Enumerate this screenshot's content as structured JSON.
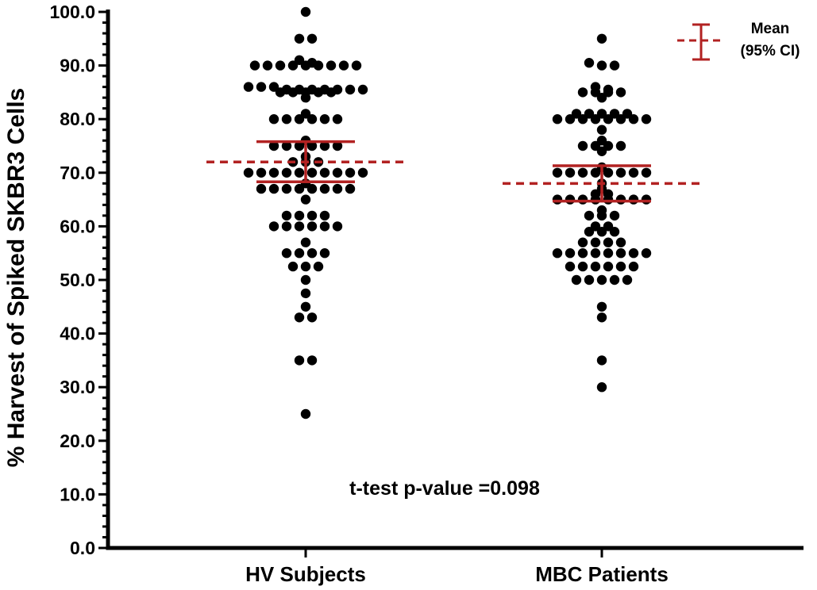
{
  "chart_data": {
    "type": "scatter",
    "subtype": "dot-plot-with-mean-and-ci",
    "title": "",
    "xlabel": "",
    "ylabel": "% Harvest of Spiked SKBR3 Cells",
    "ylim": [
      0,
      100
    ],
    "yticks": [
      0,
      10,
      20,
      30,
      40,
      50,
      60,
      70,
      80,
      90,
      100
    ],
    "ytick_labels": [
      "0.0",
      "10.0",
      "20.0",
      "30.0",
      "40.0",
      "50.0",
      "60.0",
      "70.0",
      "80.0",
      "90.0",
      "100.0"
    ],
    "categories": [
      "HV Subjects",
      "MBC Patients"
    ],
    "series": [
      {
        "name": "HV Subjects",
        "mean": 72.0,
        "ci_low": 68.3,
        "ci_high": 75.8,
        "values": [
          100,
          95,
          95,
          91,
          90.5,
          90,
          90,
          90,
          90,
          90,
          90,
          90,
          90,
          90,
          86,
          86,
          86,
          85.5,
          85.5,
          85.5,
          85.5,
          85.5,
          85.5,
          85.5,
          85,
          85,
          85,
          85,
          85,
          84,
          81,
          80,
          80,
          80,
          80,
          80,
          80,
          76,
          75,
          75,
          75,
          75,
          75,
          75,
          73,
          72,
          72,
          72,
          70,
          70,
          70,
          70,
          70,
          70,
          70,
          70,
          70,
          70,
          68,
          67,
          67,
          67,
          67,
          67,
          67,
          67,
          67,
          65,
          62,
          62,
          62,
          62,
          60,
          60,
          60,
          60,
          60,
          60,
          57,
          55,
          55,
          55,
          55,
          52.5,
          52.5,
          52.5,
          50,
          47.5,
          45,
          43,
          43,
          35,
          35,
          25
        ]
      },
      {
        "name": "MBC Patients",
        "mean": 68.0,
        "ci_low": 64.7,
        "ci_high": 71.3,
        "values": [
          95,
          90.5,
          90,
          90,
          86,
          85.5,
          85,
          85,
          85,
          85,
          84,
          81,
          81,
          81,
          81,
          81,
          80,
          80,
          80,
          80,
          80,
          80,
          80,
          80,
          78,
          76,
          75,
          75,
          75,
          75,
          74,
          71,
          70,
          70,
          70,
          70,
          70,
          70,
          70,
          70,
          68,
          67,
          66,
          66,
          65,
          65,
          65,
          65,
          65,
          65,
          65,
          65,
          63,
          62,
          62,
          62,
          60,
          60,
          59,
          59,
          59,
          57,
          57,
          57,
          57,
          55,
          55,
          55,
          55,
          55,
          55,
          55,
          55,
          52.5,
          52.5,
          52.5,
          52.5,
          52.5,
          52.5,
          50,
          50,
          50,
          50,
          50,
          45,
          43,
          35,
          30
        ]
      }
    ],
    "legend": {
      "position": "top-right",
      "label_line1": "Mean",
      "label_line2": "(95% CI)"
    },
    "annotation": "t-test p-value =0.098",
    "colors": {
      "points": "#000000",
      "mean_ci": "#b22222",
      "axis": "#000000"
    }
  }
}
